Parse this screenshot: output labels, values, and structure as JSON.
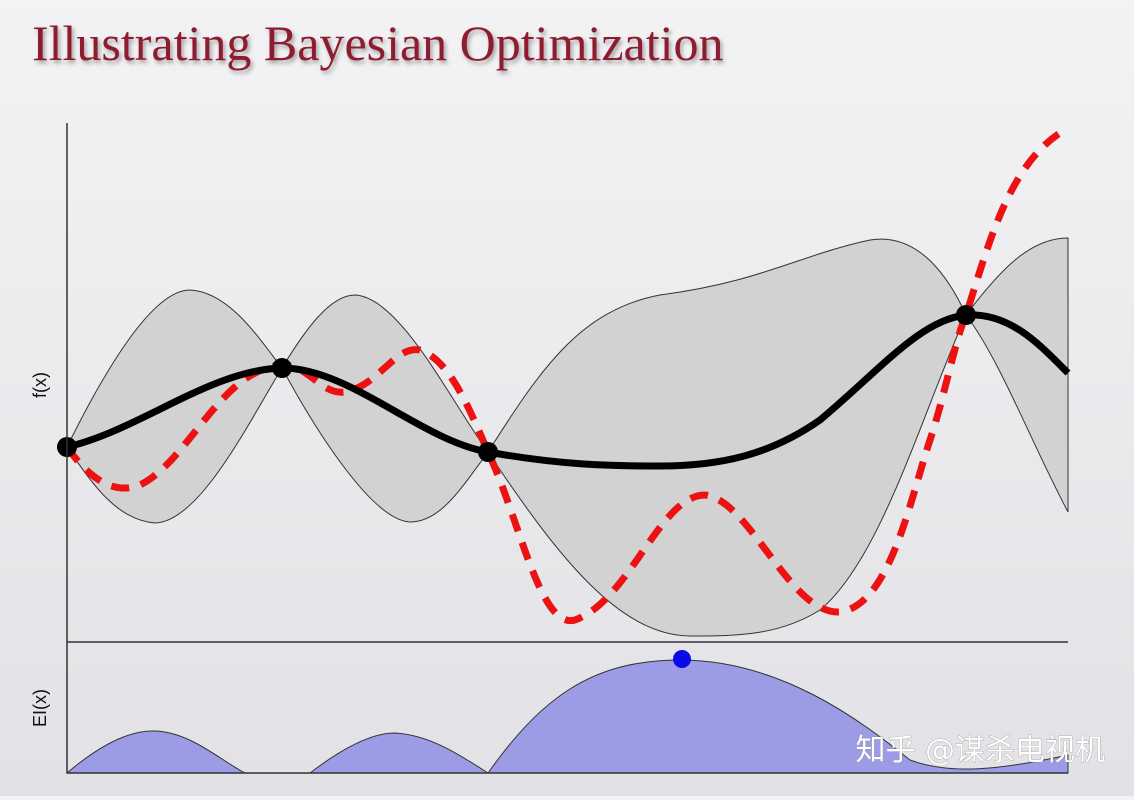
{
  "header": {
    "title": "Illustrating Bayesian Optimization"
  },
  "figure": {
    "top_axis_label": "f(x)",
    "bottom_axis_label": "EI(x)"
  },
  "watermark": "知乎 @谋杀电视机"
}
